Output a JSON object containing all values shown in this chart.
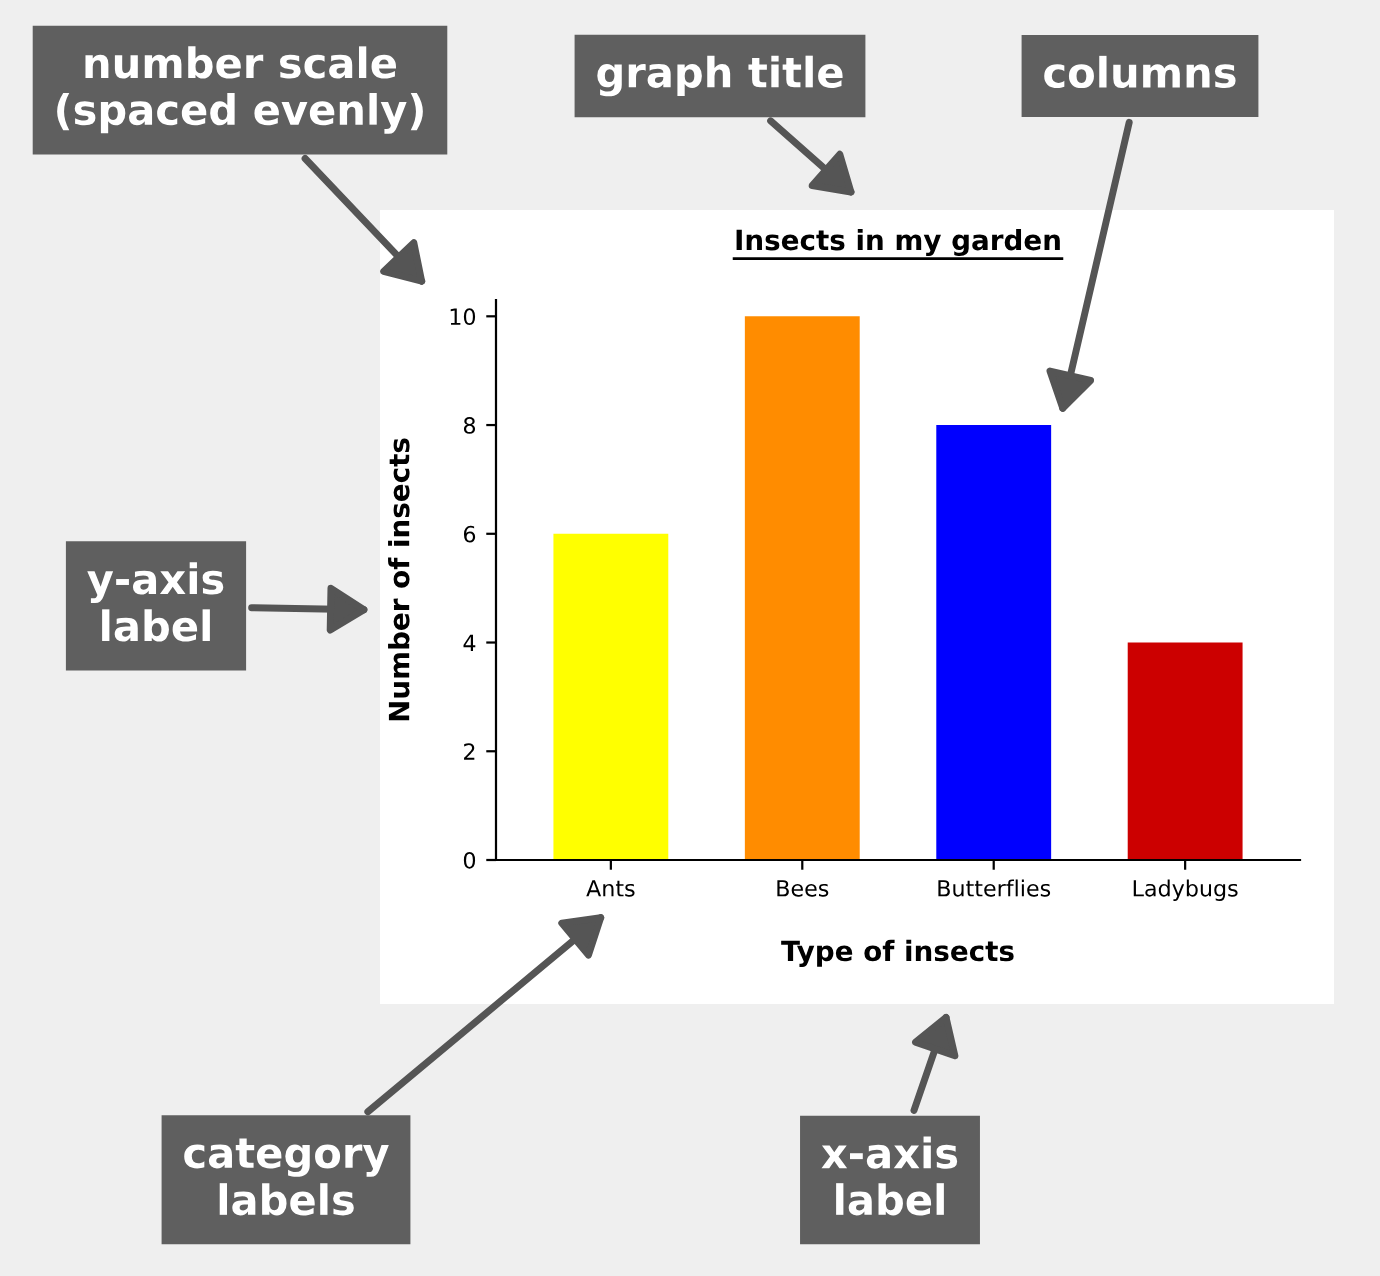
{
  "chart_data": {
    "type": "bar",
    "title": "Insects in my garden",
    "xlabel": "Type of insects",
    "ylabel": "Number of insects",
    "categories": [
      "Ants",
      "Bees",
      "Butterflies",
      "Ladybugs"
    ],
    "values": [
      6,
      10,
      8,
      4
    ],
    "colors": [
      "#ffff00",
      "#ff8c00",
      "#0000ff",
      "#cc0000"
    ],
    "ylim": [
      0,
      10.3
    ],
    "yticks": [
      0,
      2,
      4,
      6,
      8,
      10
    ],
    "grid": false,
    "legend": false,
    "annotations": [
      "number scale\n(spaced evenly)",
      "graph title",
      "columns",
      "y-axis\nlabel",
      "category\nlabels",
      "x-axis\nlabel"
    ]
  }
}
